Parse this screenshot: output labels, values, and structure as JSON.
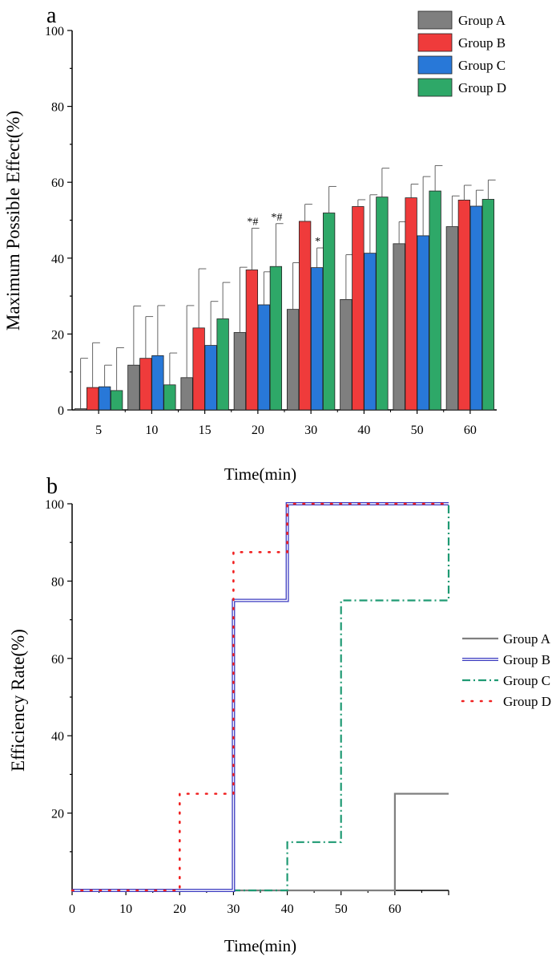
{
  "chart_data": [
    {
      "panel_label": "a",
      "type": "bar",
      "ylabel": "Maximum Possible Effect(%)",
      "xlabel": "Time(min)",
      "ylim": [
        0,
        100
      ],
      "yticks": [
        "0",
        "20",
        "40",
        "60",
        "80",
        "100"
      ],
      "categories": [
        "5",
        "10",
        "15",
        "20",
        "30",
        "40",
        "50",
        "60"
      ],
      "series": [
        {
          "name": "Group A",
          "color": "#7f7f7f",
          "values": [
            0.3,
            11.8,
            8.5,
            20.4,
            26.5,
            29.1,
            43.8,
            48.3
          ],
          "errors": [
            13.3,
            15.6,
            19.0,
            17.2,
            12.3,
            11.8,
            5.8,
            8.1
          ]
        },
        {
          "name": "Group B",
          "color": "#ef3b3b",
          "values": [
            5.9,
            13.6,
            21.6,
            36.9,
            49.7,
            53.6,
            55.9,
            55.3
          ],
          "errors": [
            11.8,
            11.0,
            15.6,
            11.0,
            4.5,
            1.8,
            3.6,
            3.9
          ]
        },
        {
          "name": "Group C",
          "color": "#2878d8",
          "values": [
            6.1,
            14.3,
            17.0,
            27.7,
            37.5,
            41.3,
            45.9,
            53.7
          ],
          "errors": [
            5.7,
            13.2,
            11.6,
            8.7,
            5.2,
            15.4,
            15.6,
            4.2
          ]
        },
        {
          "name": "Group D",
          "color": "#2ea868",
          "values": [
            5.1,
            6.6,
            24.0,
            37.8,
            51.9,
            56.1,
            57.7,
            55.5
          ],
          "errors": [
            11.3,
            8.4,
            9.6,
            11.3,
            7.0,
            7.6,
            6.7,
            5.1
          ]
        }
      ],
      "annotations": [
        {
          "text": "*#",
          "category": "20",
          "series": "Group B"
        },
        {
          "text": "*#",
          "category": "20",
          "series": "Group D"
        },
        {
          "text": "*",
          "category": "30",
          "series": "Group C"
        }
      ],
      "legend_position": "top-right"
    },
    {
      "panel_label": "b",
      "type": "line",
      "ylabel": "Efficiency Rate(%)",
      "xlabel": "Time(min)",
      "xlim": [
        0,
        70
      ],
      "ylim": [
        0,
        100
      ],
      "xticks": [
        "0",
        "10",
        "20",
        "30",
        "40",
        "50",
        "60"
      ],
      "yticks": [
        "20",
        "40",
        "60",
        "80",
        "100"
      ],
      "series": [
        {
          "name": "Group A",
          "color": "#7f7f7f",
          "style": "solid",
          "points": [
            [
              0,
              0
            ],
            [
              60,
              0
            ],
            [
              60,
              25
            ],
            [
              70,
              25
            ]
          ]
        },
        {
          "name": "Group B",
          "color": "#3b3bc0",
          "style": "double",
          "points": [
            [
              0,
              0
            ],
            [
              30,
              0
            ],
            [
              30,
              75
            ],
            [
              40,
              75
            ],
            [
              40,
              100
            ],
            [
              70,
              100
            ]
          ]
        },
        {
          "name": "Group C",
          "color": "#1f9a73",
          "style": "dashdot",
          "points": [
            [
              0,
              0
            ],
            [
              40,
              0
            ],
            [
              40,
              12.5
            ],
            [
              50,
              12.5
            ],
            [
              50,
              75
            ],
            [
              70,
              75
            ],
            [
              70,
              100
            ]
          ]
        },
        {
          "name": "Group D",
          "color": "#f02020",
          "style": "dotted",
          "points": [
            [
              0,
              0
            ],
            [
              20,
              0
            ],
            [
              20,
              25
            ],
            [
              30,
              25
            ],
            [
              30,
              87.5
            ],
            [
              40,
              87.5
            ],
            [
              40,
              100
            ],
            [
              70,
              100
            ]
          ]
        }
      ],
      "legend_position": "right"
    }
  ]
}
